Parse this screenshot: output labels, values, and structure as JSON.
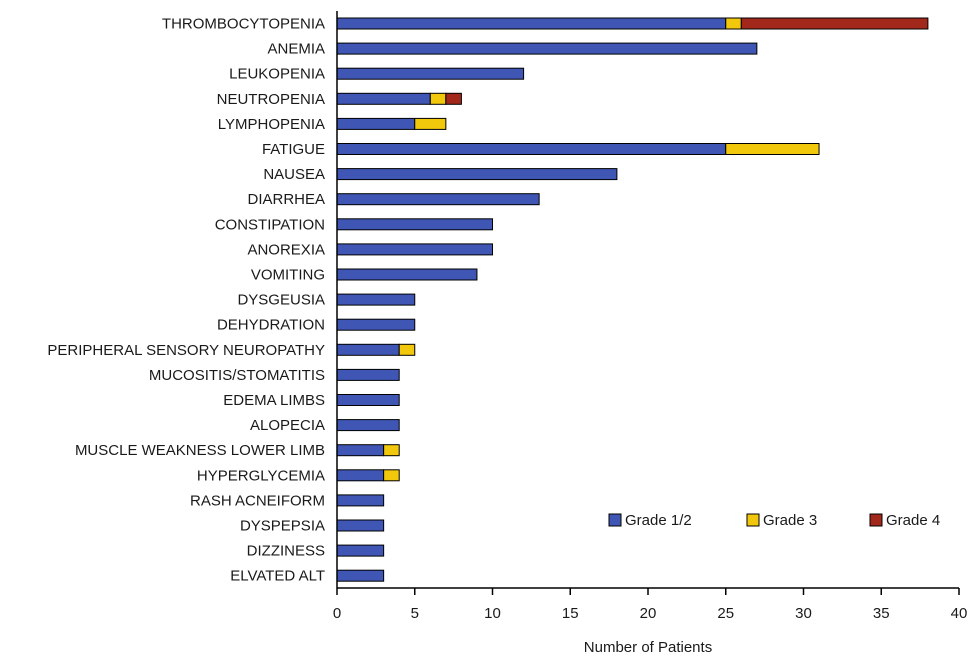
{
  "chart_data": {
    "type": "bar",
    "orientation": "horizontal",
    "stacked": true,
    "title": "",
    "xlabel": "Number of Patients",
    "ylabel": "",
    "xlim": [
      0,
      40
    ],
    "xticks": [
      0,
      5,
      10,
      15,
      20,
      25,
      30,
      35,
      40
    ],
    "grid": false,
    "legend_position": "bottom-right",
    "categories": [
      "THROMBOCYTOPENIA",
      "ANEMIA",
      "LEUKOPENIA",
      "NEUTROPENIA",
      "LYMPHOPENIA",
      "FATIGUE",
      "NAUSEA",
      "DIARRHEA",
      "CONSTIPATION",
      "ANOREXIA",
      "VOMITING",
      "DYSGEUSIA",
      "DEHYDRATION",
      "PERIPHERAL SENSORY NEUROPATHY",
      "MUCOSITIS/STOMATITIS",
      "EDEMA LIMBS",
      "ALOPECIA",
      "MUSCLE WEAKNESS LOWER LIMB",
      "HYPERGLYCEMIA",
      "RASH ACNEIFORM",
      "DYSPEPSIA",
      "DIZZINESS",
      "ELVATED ALT"
    ],
    "series": [
      {
        "name": "Grade 1/2",
        "color": "#3f56b4",
        "values": [
          25,
          27,
          12,
          6,
          5,
          25,
          18,
          13,
          10,
          10,
          9,
          5,
          5,
          4,
          4,
          4,
          4,
          3,
          3,
          3,
          3,
          3,
          3
        ]
      },
      {
        "name": "Grade 3",
        "color": "#f2c80c",
        "values": [
          1,
          0,
          0,
          1,
          2,
          6,
          0,
          0,
          0,
          0,
          0,
          0,
          0,
          1,
          0,
          0,
          0,
          1,
          1,
          0,
          0,
          0,
          0
        ]
      },
      {
        "name": "Grade 4",
        "color": "#a3281c",
        "values": [
          12,
          0,
          0,
          1,
          0,
          0,
          0,
          0,
          0,
          0,
          0,
          0,
          0,
          0,
          0,
          0,
          0,
          0,
          0,
          0,
          0,
          0,
          0
        ]
      }
    ]
  }
}
